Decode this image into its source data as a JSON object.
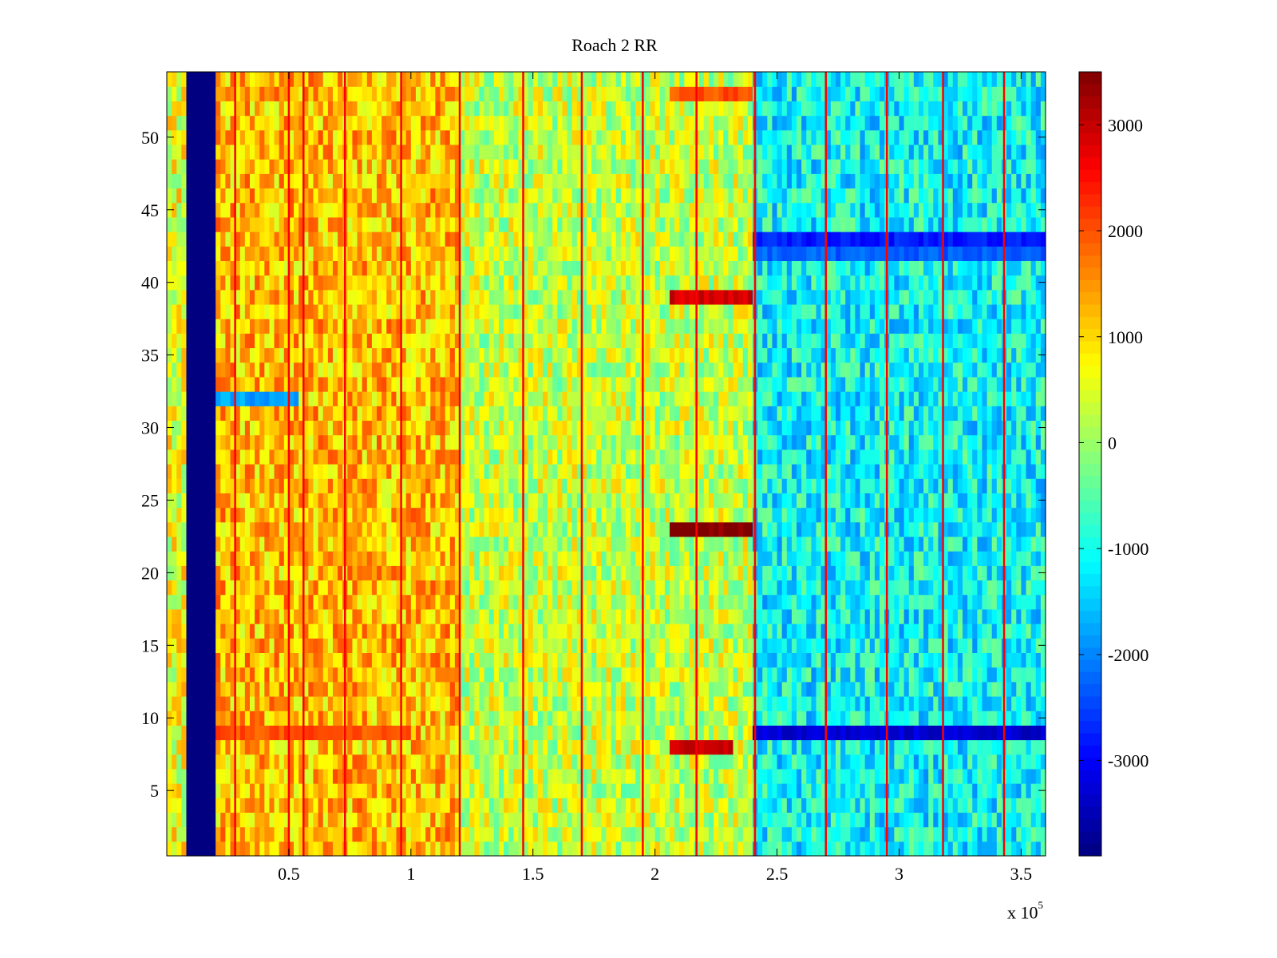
{
  "chart_data": {
    "type": "heatmap",
    "title": "Roach 2 RR",
    "xlabel": "",
    "ylabel": "",
    "x_multiplier_label": "x 10",
    "x_multiplier_exponent": "5",
    "xlim": [
      0,
      3.6
    ],
    "ylim": [
      0.5,
      54.5
    ],
    "x_ticks": [
      0.5,
      1,
      1.5,
      2,
      2.5,
      3,
      3.5
    ],
    "x_tick_labels": [
      "0.5",
      "1",
      "1.5",
      "2",
      "2.5",
      "3",
      "3.5"
    ],
    "y_ticks": [
      5,
      10,
      15,
      20,
      25,
      30,
      35,
      40,
      45,
      50
    ],
    "y_tick_labels": [
      "5",
      "10",
      "15",
      "20",
      "25",
      "30",
      "35",
      "40",
      "45",
      "50"
    ],
    "rows": 54,
    "colormap": "jet",
    "clim": [
      -3900,
      3500
    ],
    "colorbar_ticks": [
      3000,
      2000,
      1000,
      0,
      -1000,
      -2000,
      -3000
    ],
    "colorbar_tick_labels": [
      "3000",
      "2000",
      "1000",
      "0",
      "-1000",
      "-2000",
      "-3000"
    ],
    "segments": [
      {
        "x_range": [
          0,
          0.08
        ],
        "typical_value": 600,
        "description": "mixed"
      },
      {
        "x_range": [
          0.08,
          0.2
        ],
        "typical_value": -3900,
        "description": "dead band (all rows)"
      },
      {
        "x_range": [
          0.2,
          1.2
        ],
        "typical_value": 1200
      },
      {
        "x_range": [
          1.2,
          2.4
        ],
        "typical_value": 300
      },
      {
        "x_range": [
          2.4,
          3.6
        ],
        "typical_value": -1100
      }
    ],
    "row_features": [
      {
        "row": 9,
        "x_range": [
          0.2,
          1.0
        ],
        "value": 2000
      },
      {
        "row": 9,
        "x_range": [
          2.4,
          3.6
        ],
        "value": -3300
      },
      {
        "row": 8,
        "x_range": [
          2.07,
          2.32
        ],
        "value": 3000
      },
      {
        "row": 23,
        "x_range": [
          2.07,
          2.4
        ],
        "value": 3500
      },
      {
        "row": 39,
        "x_range": [
          2.07,
          2.4
        ],
        "value": 2900
      },
      {
        "row": 43,
        "x_range": [
          2.4,
          3.6
        ],
        "value": -2800
      },
      {
        "row": 42,
        "x_range": [
          2.4,
          3.6
        ],
        "value": -2300
      },
      {
        "row": 32,
        "x_range": [
          0.2,
          0.55
        ],
        "value": -1800
      },
      {
        "row": 53,
        "x_range": [
          2.07,
          2.4
        ],
        "value": 2000
      }
    ],
    "vertical_lines_x": [
      0.28,
      0.5,
      0.56,
      0.73,
      0.96,
      1.2,
      1.46,
      1.7,
      1.95,
      2.17,
      2.41,
      2.7,
      2.95,
      3.18,
      3.43
    ]
  }
}
